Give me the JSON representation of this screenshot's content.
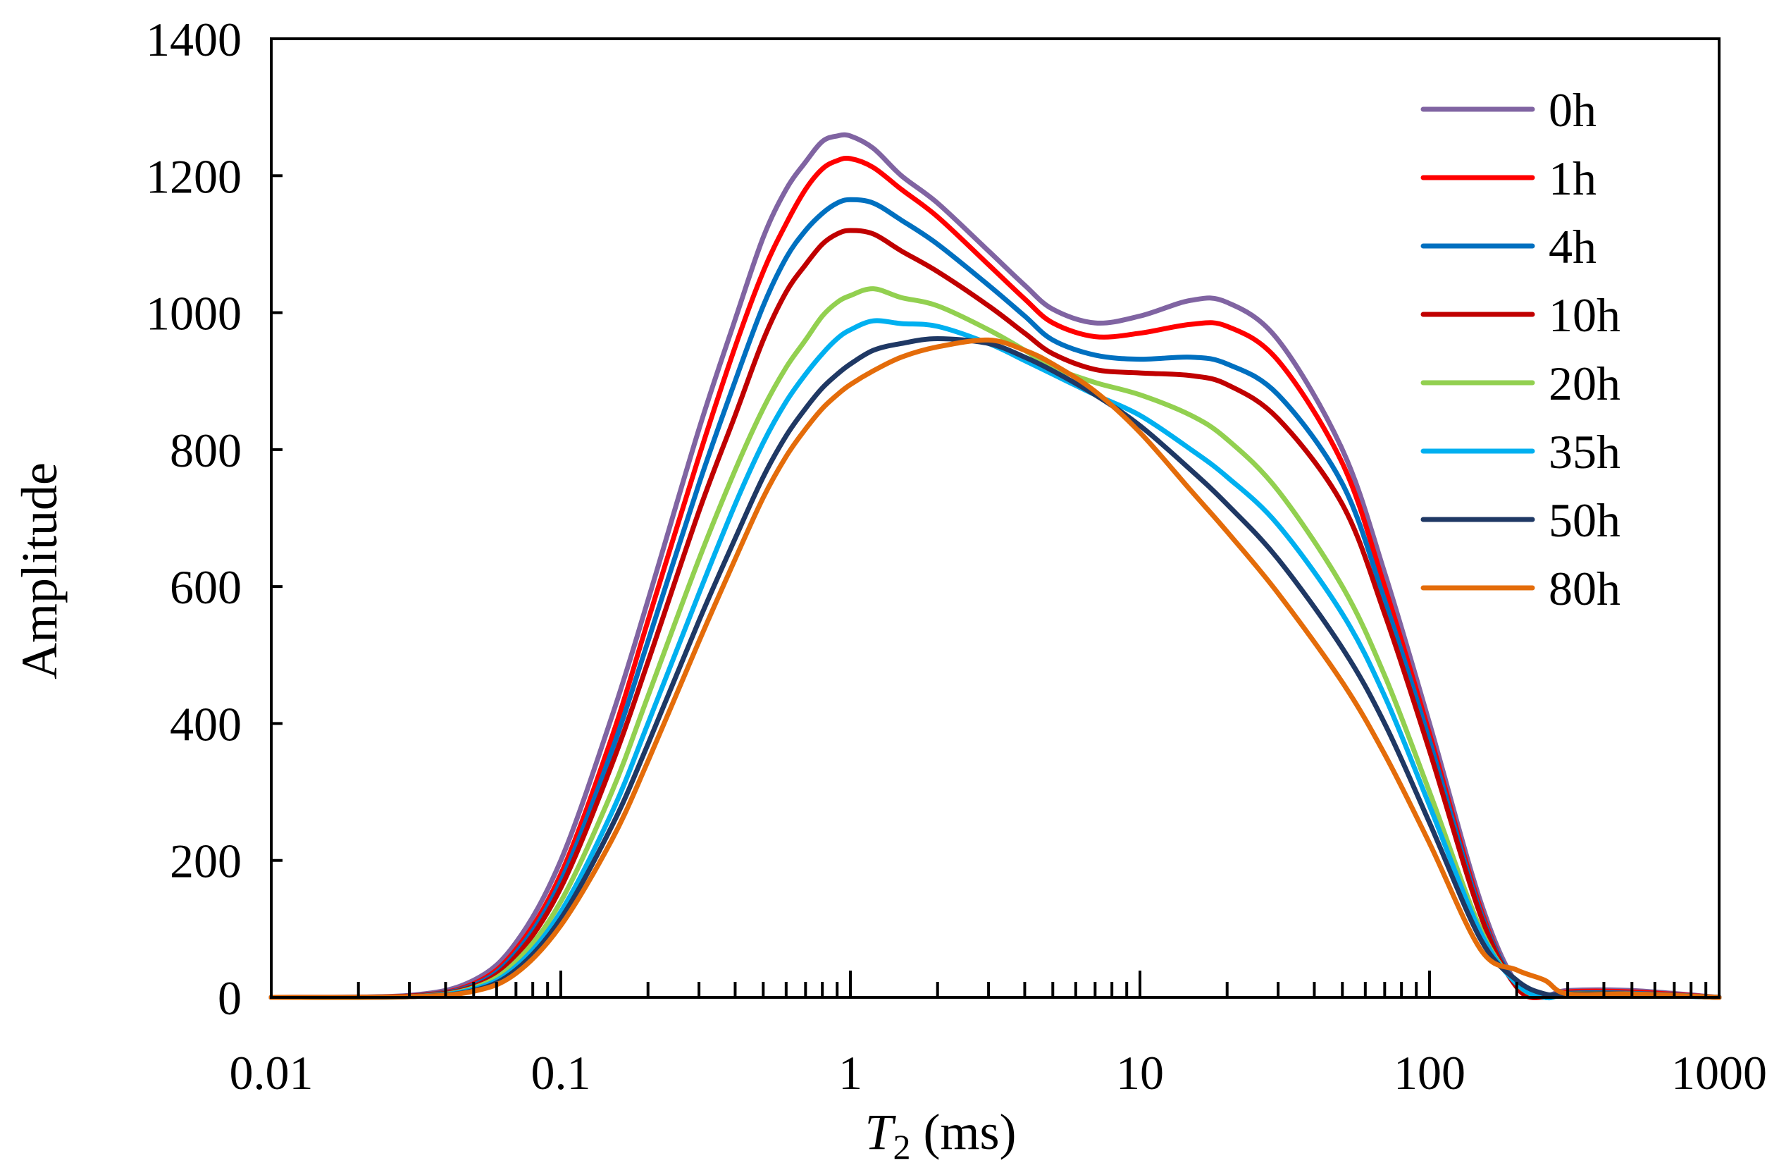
{
  "chart_data": {
    "type": "line",
    "xscale": "log",
    "xlabel_main": "T",
    "xlabel_sub": "2",
    "xlabel_rest": " (ms)",
    "ylabel": "Amplitude",
    "xlim": [
      0.01,
      1000
    ],
    "ylim": [
      0,
      1400
    ],
    "x_ticks": [
      0.01,
      0.1,
      1,
      10,
      100,
      1000
    ],
    "x_tick_labels": [
      "0.01",
      "0.1",
      "1",
      "10",
      "100",
      "1000"
    ],
    "y_ticks": [
      0,
      200,
      400,
      600,
      800,
      1000,
      1200,
      1400
    ],
    "y_tick_labels": [
      "0",
      "200",
      "400",
      "600",
      "800",
      "1000",
      "1200",
      "1400"
    ],
    "legend_position": "top-right",
    "series": [
      {
        "name": "0h",
        "color": "#8064a2",
        "x": [
          0.01,
          0.03,
          0.05,
          0.07,
          0.1,
          0.15,
          0.2,
          0.3,
          0.4,
          0.5,
          0.6,
          0.7,
          0.8,
          0.9,
          1,
          1.2,
          1.5,
          2,
          3,
          4,
          5,
          7,
          10,
          15,
          20,
          30,
          50,
          70,
          100,
          150,
          200,
          250,
          300,
          500,
          1000
        ],
        "y": [
          0,
          3,
          25,
          80,
          200,
          410,
          580,
          830,
          990,
          1110,
          1180,
          1220,
          1250,
          1258,
          1258,
          1240,
          1200,
          1160,
          1090,
          1040,
          1005,
          985,
          995,
          1018,
          1015,
          960,
          800,
          620,
          400,
          140,
          20,
          3,
          10,
          10,
          0
        ]
      },
      {
        "name": "1h",
        "color": "#ff0000",
        "x": [
          0.01,
          0.03,
          0.05,
          0.07,
          0.1,
          0.15,
          0.2,
          0.3,
          0.4,
          0.5,
          0.6,
          0.7,
          0.8,
          0.9,
          1,
          1.2,
          1.5,
          2,
          3,
          4,
          5,
          7,
          10,
          15,
          20,
          30,
          50,
          70,
          100,
          150,
          200,
          250,
          300,
          500,
          1000
        ],
        "y": [
          0,
          2,
          20,
          70,
          180,
          380,
          550,
          790,
          950,
          1060,
          1130,
          1180,
          1210,
          1222,
          1225,
          1212,
          1180,
          1140,
          1070,
          1020,
          985,
          965,
          970,
          983,
          980,
          930,
          780,
          600,
          385,
          130,
          15,
          0,
          8,
          8,
          0
        ]
      },
      {
        "name": "4h",
        "color": "#0070c0",
        "x": [
          0.01,
          0.03,
          0.05,
          0.07,
          0.1,
          0.15,
          0.2,
          0.3,
          0.4,
          0.5,
          0.6,
          0.7,
          0.8,
          0.9,
          1,
          1.2,
          1.5,
          2,
          3,
          4,
          5,
          7,
          10,
          15,
          20,
          30,
          50,
          70,
          100,
          150,
          200,
          250,
          300,
          500,
          1000
        ],
        "y": [
          0,
          2,
          18,
          65,
          170,
          360,
          520,
          750,
          900,
          1010,
          1080,
          1120,
          1145,
          1160,
          1165,
          1160,
          1135,
          1100,
          1040,
          995,
          960,
          938,
          932,
          935,
          925,
          880,
          750,
          580,
          375,
          125,
          18,
          0,
          6,
          6,
          0
        ]
      },
      {
        "name": "10h",
        "color": "#c00000",
        "x": [
          0.01,
          0.03,
          0.05,
          0.07,
          0.1,
          0.15,
          0.2,
          0.3,
          0.4,
          0.5,
          0.6,
          0.7,
          0.8,
          0.9,
          1,
          1.2,
          1.5,
          2,
          3,
          4,
          5,
          7,
          10,
          15,
          20,
          30,
          50,
          70,
          100,
          150,
          200,
          250,
          300,
          500,
          1000
        ],
        "y": [
          0,
          2,
          16,
          60,
          160,
          340,
          490,
          710,
          850,
          960,
          1030,
          1070,
          1100,
          1115,
          1120,
          1115,
          1090,
          1060,
          1010,
          970,
          940,
          917,
          912,
          908,
          895,
          845,
          720,
          560,
          360,
          120,
          15,
          0,
          5,
          5,
          0
        ]
      },
      {
        "name": "20h",
        "color": "#92d050",
        "x": [
          0.01,
          0.03,
          0.05,
          0.07,
          0.1,
          0.15,
          0.2,
          0.3,
          0.4,
          0.5,
          0.6,
          0.7,
          0.8,
          0.9,
          1,
          1.2,
          1.5,
          2,
          3,
          4,
          5,
          7,
          10,
          15,
          20,
          30,
          50,
          70,
          100,
          150,
          200,
          250,
          300,
          500,
          1000
        ],
        "y": [
          0,
          1,
          14,
          52,
          140,
          300,
          440,
          640,
          770,
          860,
          920,
          960,
          995,
          1015,
          1025,
          1035,
          1022,
          1010,
          975,
          945,
          920,
          898,
          880,
          850,
          815,
          740,
          600,
          470,
          300,
          100,
          20,
          0,
          5,
          5,
          0
        ]
      },
      {
        "name": "35h",
        "color": "#00b0f0",
        "x": [
          0.01,
          0.03,
          0.05,
          0.07,
          0.1,
          0.15,
          0.2,
          0.3,
          0.4,
          0.5,
          0.6,
          0.7,
          0.8,
          0.9,
          1,
          1.2,
          1.5,
          2,
          3,
          4,
          5,
          7,
          10,
          15,
          20,
          30,
          50,
          70,
          100,
          150,
          200,
          250,
          300,
          500,
          1000
        ],
        "y": [
          0,
          1,
          12,
          45,
          125,
          270,
          400,
          590,
          720,
          810,
          870,
          910,
          940,
          962,
          975,
          988,
          984,
          980,
          955,
          930,
          910,
          880,
          850,
          800,
          760,
          690,
          560,
          440,
          280,
          95,
          20,
          0,
          4,
          4,
          0
        ]
      },
      {
        "name": "50h",
        "color": "#1f3864",
        "x": [
          0.01,
          0.03,
          0.05,
          0.07,
          0.1,
          0.15,
          0.2,
          0.3,
          0.4,
          0.5,
          0.6,
          0.7,
          0.8,
          0.9,
          1,
          1.2,
          1.5,
          2,
          3,
          4,
          5,
          7,
          10,
          15,
          20,
          30,
          50,
          70,
          100,
          150,
          200,
          250,
          300,
          500,
          1000
        ],
        "y": [
          0,
          1,
          10,
          40,
          115,
          250,
          370,
          550,
          670,
          760,
          820,
          860,
          890,
          910,
          925,
          945,
          955,
          962,
          955,
          935,
          915,
          880,
          835,
          770,
          720,
          640,
          510,
          400,
          255,
          85,
          25,
          5,
          5,
          5,
          0
        ]
      },
      {
        "name": "80h",
        "color": "#e46c0a",
        "x": [
          0.01,
          0.03,
          0.05,
          0.07,
          0.1,
          0.15,
          0.2,
          0.3,
          0.4,
          0.5,
          0.6,
          0.7,
          0.8,
          0.9,
          1,
          1.2,
          1.5,
          2,
          3,
          4,
          5,
          7,
          10,
          15,
          20,
          30,
          50,
          70,
          100,
          150,
          200,
          250,
          300,
          500,
          1000
        ],
        "y": [
          0,
          1,
          9,
          35,
          105,
          230,
          345,
          520,
          640,
          730,
          790,
          830,
          860,
          880,
          895,
          915,
          935,
          950,
          960,
          945,
          925,
          885,
          825,
          740,
          680,
          590,
          460,
          355,
          225,
          70,
          40,
          25,
          5,
          5,
          0
        ]
      }
    ]
  }
}
